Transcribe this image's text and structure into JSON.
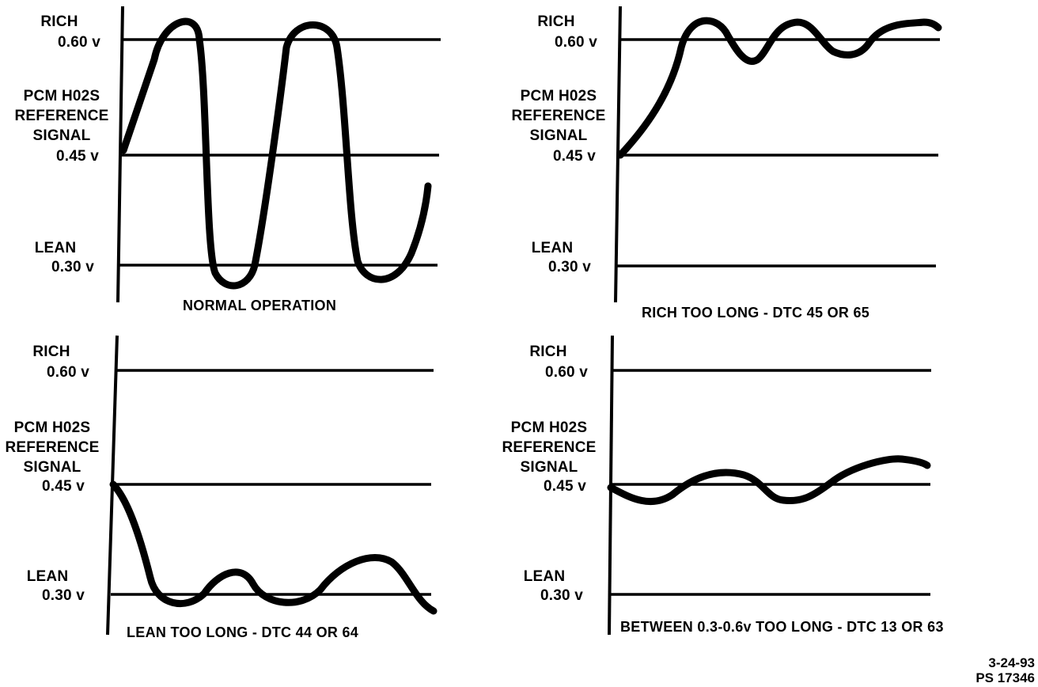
{
  "labels": {
    "rich": "RICH",
    "v060": "0.60 v",
    "pcm1": "PCM H02S",
    "pcm2": "REFERENCE",
    "pcm3": "SIGNAL",
    "v045": "0.45 v",
    "lean": "LEAN",
    "v030": "0.30 v"
  },
  "panels": [
    {
      "caption": "NORMAL OPERATION"
    },
    {
      "caption": "RICH TOO LONG - DTC 45 OR 65"
    },
    {
      "caption": "LEAN TOO LONG - DTC 44 OR 64"
    },
    {
      "caption": "BETWEEN 0.3-0.6v TOO LONG - DTC 13 OR 63"
    }
  ],
  "footer": {
    "date": "3-24-93",
    "code": "PS 17346"
  }
}
